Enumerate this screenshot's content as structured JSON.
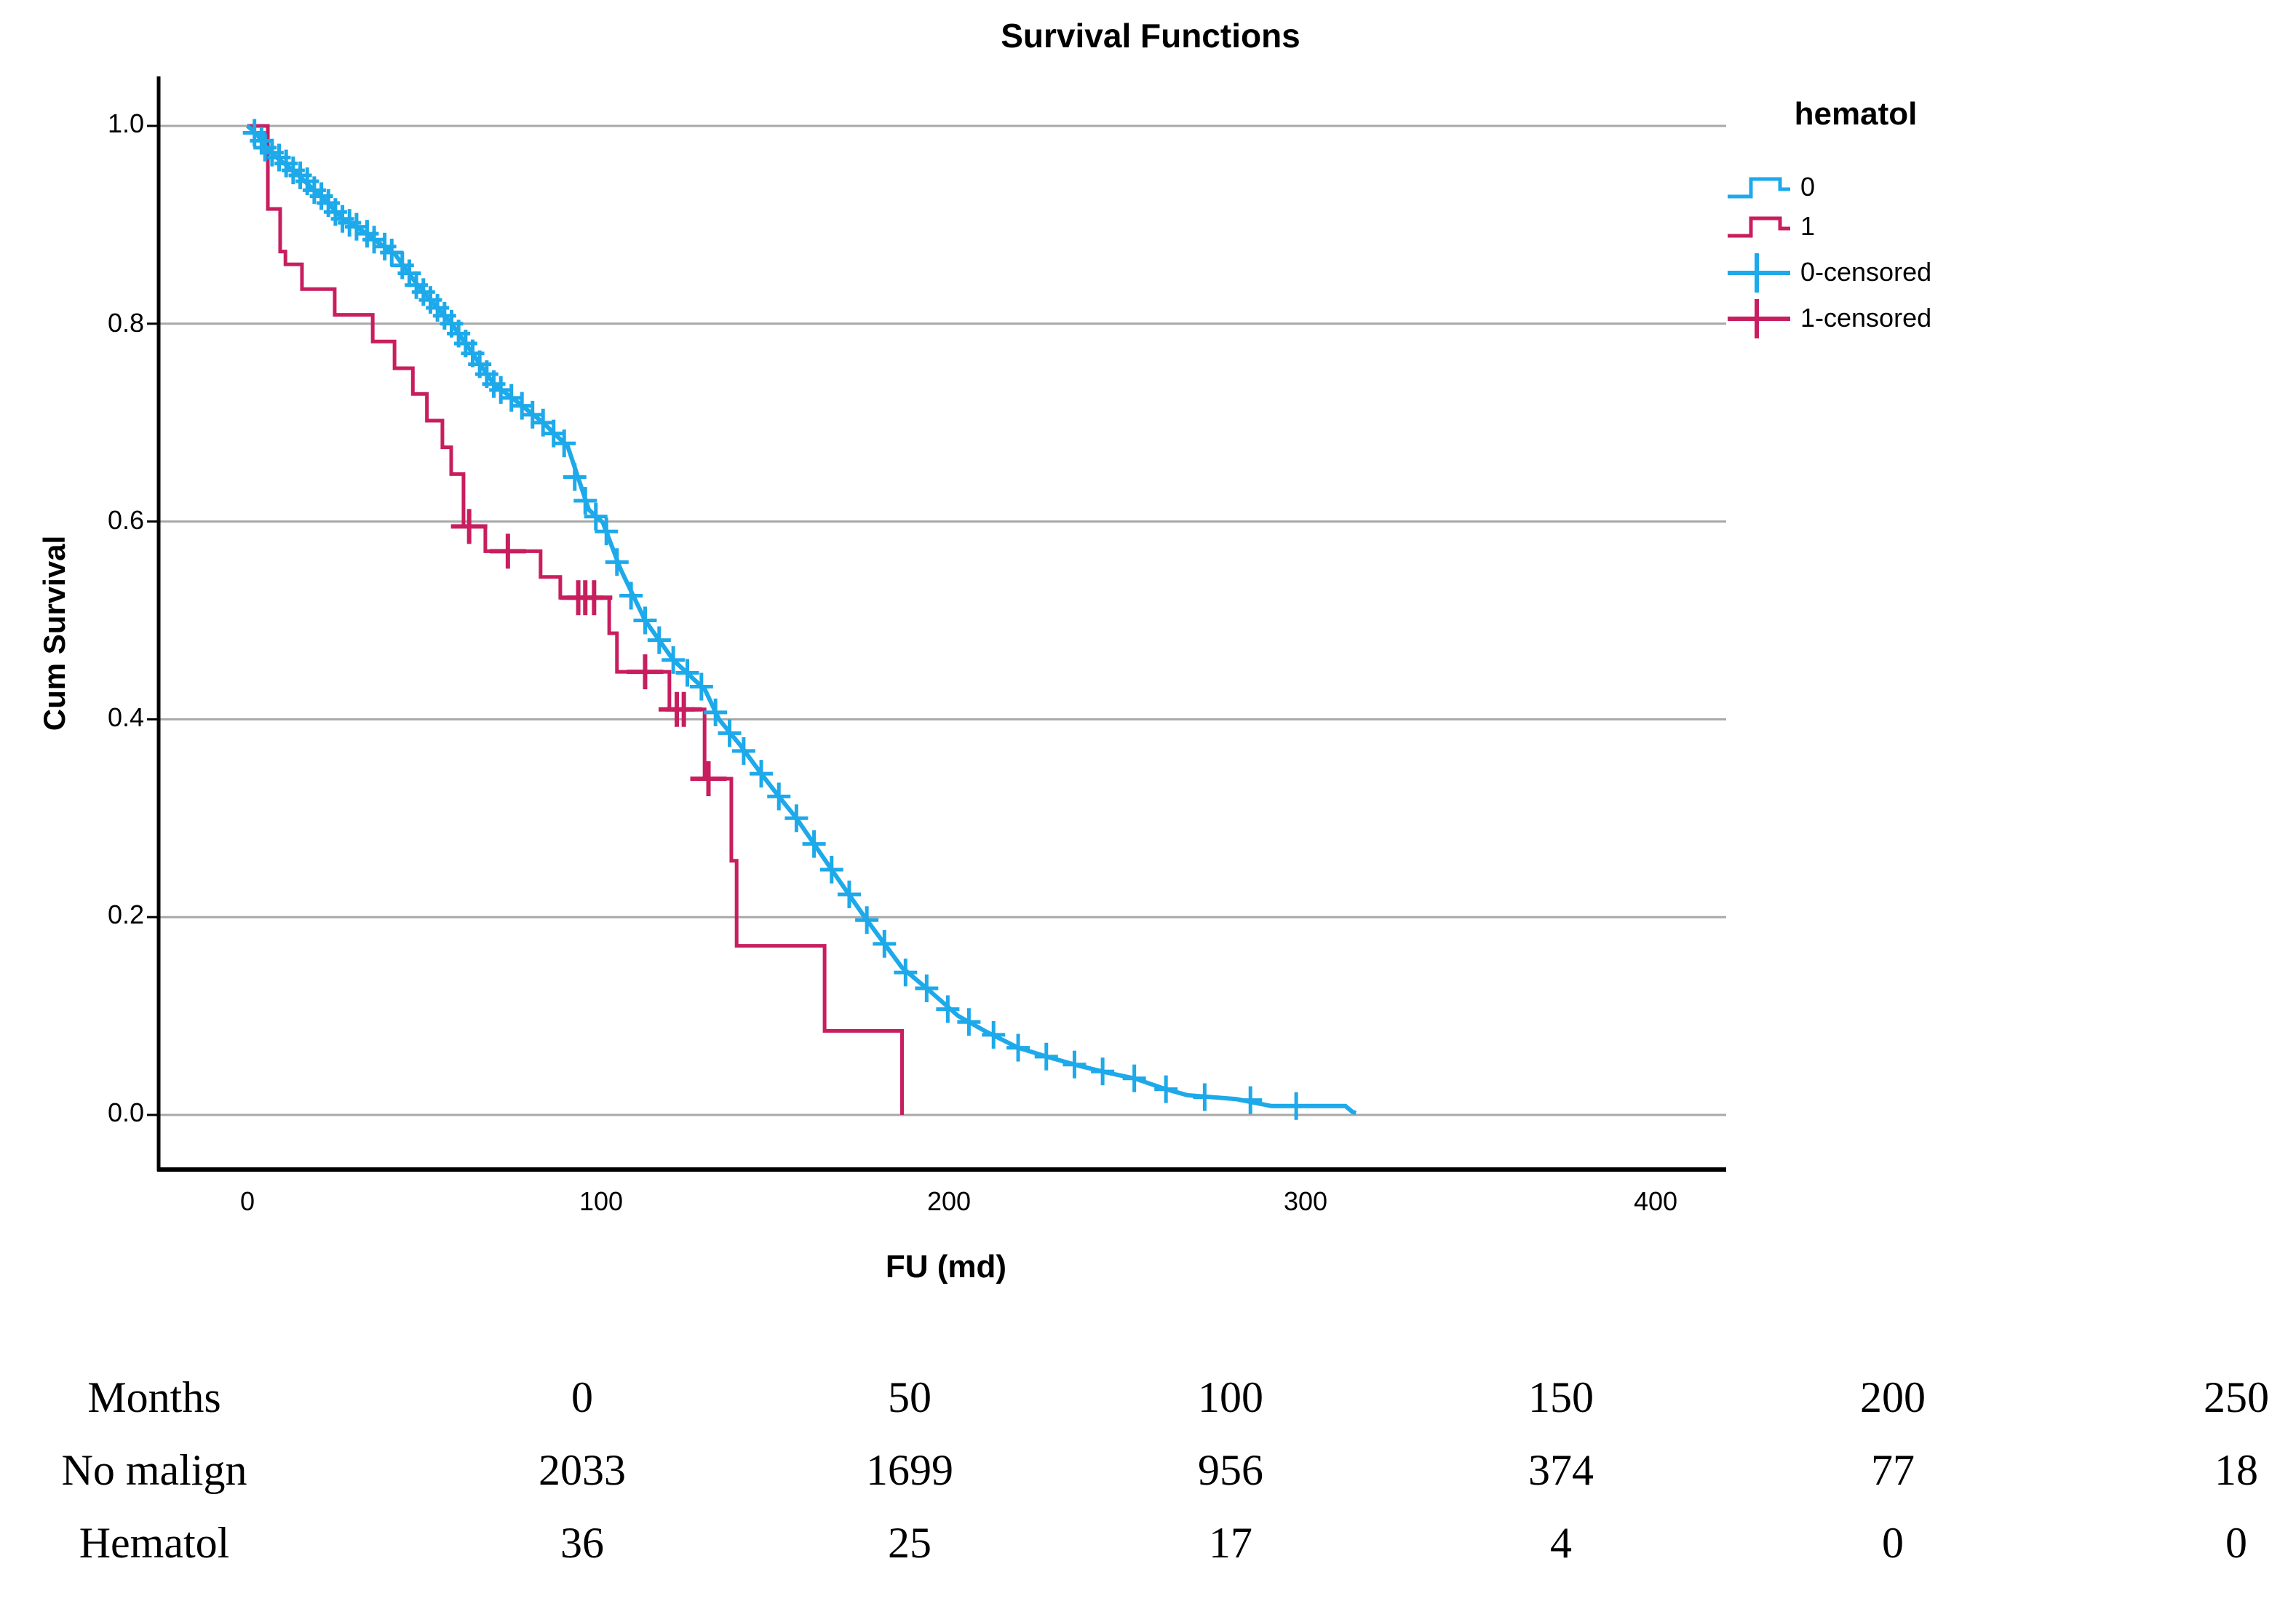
{
  "title": "Survival Functions",
  "axes": {
    "y_label": "Cum Survival",
    "x_label": "FU (md)",
    "y_ticks": [
      "1.0",
      "0.8",
      "0.6",
      "0.4",
      "0.2",
      "0.0"
    ],
    "x_ticks": [
      "0",
      "100",
      "200",
      "300",
      "400"
    ]
  },
  "legend": {
    "title": "hematol",
    "entries": [
      {
        "label": "0",
        "type": "step",
        "color": "#1da9ea"
      },
      {
        "label": "1",
        "type": "step",
        "color": "#c81e5f"
      },
      {
        "label": "0-censored",
        "type": "plus",
        "color": "#1da9ea"
      },
      {
        "label": "1-censored",
        "type": "plus",
        "color": "#c81e5f"
      }
    ]
  },
  "colors": {
    "blue": "#1da9ea",
    "red": "#c81e5f",
    "grid": "#a8a8a8",
    "axis": "#000000"
  },
  "chart_data": {
    "type": "line",
    "subtype": "kaplan-meier",
    "title": "Survival Functions",
    "xlabel": "FU (md)",
    "ylabel": "Cum Survival",
    "xlim": [
      0,
      400
    ],
    "ylim": [
      0.0,
      1.0
    ],
    "grid": "horizontal",
    "legend_position": "right",
    "series": [
      {
        "name": "0",
        "group": "No malign",
        "color": "#1da9ea",
        "render": "smooth",
        "points": [
          [
            0,
            1.0
          ],
          [
            1,
            0.997
          ],
          [
            3,
            0.99
          ],
          [
            6,
            0.975
          ],
          [
            9,
            0.966
          ],
          [
            13,
            0.955
          ],
          [
            19,
            0.935
          ],
          [
            23,
            0.922
          ],
          [
            27,
            0.906
          ],
          [
            33,
            0.893
          ],
          [
            38,
            0.88
          ],
          [
            42,
            0.87
          ],
          [
            45,
            0.855
          ],
          [
            49,
            0.836
          ],
          [
            54,
            0.816
          ],
          [
            58,
            0.8
          ],
          [
            63,
            0.775
          ],
          [
            70,
            0.739
          ],
          [
            77,
            0.72
          ],
          [
            84,
            0.7
          ],
          [
            91,
            0.676
          ],
          [
            97,
            0.612
          ],
          [
            101,
            0.599
          ],
          [
            106,
            0.552
          ],
          [
            113,
            0.5
          ],
          [
            121,
            0.46
          ],
          [
            130,
            0.43
          ],
          [
            134,
            0.4
          ],
          [
            140,
            0.374
          ],
          [
            146,
            0.345
          ],
          [
            151,
            0.322
          ],
          [
            156,
            0.3
          ],
          [
            166,
            0.248
          ],
          [
            175,
            0.202
          ],
          [
            186,
            0.149
          ],
          [
            194,
            0.125
          ],
          [
            202,
            0.1
          ],
          [
            210,
            0.084
          ],
          [
            219,
            0.068
          ],
          [
            228,
            0.058
          ],
          [
            236,
            0.05
          ],
          [
            244,
            0.043
          ],
          [
            252,
            0.037
          ],
          [
            261,
            0.026
          ],
          [
            267,
            0.02
          ],
          [
            281,
            0.016
          ],
          [
            291,
            0.009
          ],
          [
            312,
            0.009
          ],
          [
            314,
            0.003
          ],
          [
            315,
            0.002
          ]
        ],
        "censored": [
          [
            2,
            0.993
          ],
          [
            4,
            0.985
          ],
          [
            5,
            0.978
          ],
          [
            7,
            0.973
          ],
          [
            9,
            0.968
          ],
          [
            11,
            0.962
          ],
          [
            13,
            0.955
          ],
          [
            15,
            0.95
          ],
          [
            17,
            0.944
          ],
          [
            19,
            0.935
          ],
          [
            21,
            0.929
          ],
          [
            23,
            0.922
          ],
          [
            25,
            0.913
          ],
          [
            27,
            0.906
          ],
          [
            29,
            0.902
          ],
          [
            31,
            0.898
          ],
          [
            34,
            0.891
          ],
          [
            36,
            0.885
          ],
          [
            39,
            0.878
          ],
          [
            41,
            0.872
          ],
          [
            44,
            0.859
          ],
          [
            46,
            0.851
          ],
          [
            48,
            0.839
          ],
          [
            50,
            0.832
          ],
          [
            52,
            0.824
          ],
          [
            54,
            0.816
          ],
          [
            56,
            0.808
          ],
          [
            58,
            0.8
          ],
          [
            60,
            0.79
          ],
          [
            62,
            0.78
          ],
          [
            64,
            0.77
          ],
          [
            66,
            0.759
          ],
          [
            68,
            0.749
          ],
          [
            70,
            0.739
          ],
          [
            72,
            0.733
          ],
          [
            75,
            0.725
          ],
          [
            78,
            0.717
          ],
          [
            81,
            0.708
          ],
          [
            84,
            0.7
          ],
          [
            87,
            0.689
          ],
          [
            90,
            0.679
          ],
          [
            93,
            0.645
          ],
          [
            96,
            0.621
          ],
          [
            99,
            0.605
          ],
          [
            102,
            0.59
          ],
          [
            105,
            0.559
          ],
          [
            109,
            0.525
          ],
          [
            113,
            0.5
          ],
          [
            117,
            0.48
          ],
          [
            121,
            0.46
          ],
          [
            125,
            0.447
          ],
          [
            129,
            0.433
          ],
          [
            133,
            0.407
          ],
          [
            137,
            0.386
          ],
          [
            141,
            0.368
          ],
          [
            146,
            0.345
          ],
          [
            151,
            0.322
          ],
          [
            156,
            0.3
          ],
          [
            161,
            0.274
          ],
          [
            166,
            0.248
          ],
          [
            171,
            0.223
          ],
          [
            176,
            0.197
          ],
          [
            181,
            0.173
          ],
          [
            187,
            0.144
          ],
          [
            193,
            0.128
          ],
          [
            199,
            0.107
          ],
          [
            205,
            0.094
          ],
          [
            212,
            0.081
          ],
          [
            219,
            0.068
          ],
          [
            227,
            0.059
          ],
          [
            235,
            0.051
          ],
          [
            243,
            0.044
          ],
          [
            252,
            0.037
          ],
          [
            261,
            0.026
          ],
          [
            272,
            0.018
          ],
          [
            285,
            0.015
          ],
          [
            298,
            0.009
          ]
        ]
      },
      {
        "name": "1",
        "group": "Hematol",
        "color": "#c81e5f",
        "render": "step",
        "points": [
          [
            0,
            1.0
          ],
          [
            5.8,
            0.916
          ],
          [
            9.3,
            0.873
          ],
          [
            10.8,
            0.86
          ],
          [
            15.5,
            0.835
          ],
          [
            24.8,
            0.809
          ],
          [
            35.6,
            0.782
          ],
          [
            41.8,
            0.755
          ],
          [
            47,
            0.729
          ],
          [
            51,
            0.702
          ],
          [
            55.4,
            0.675
          ],
          [
            57.9,
            0.648
          ],
          [
            61.4,
            0.595
          ],
          [
            67.6,
            0.57
          ],
          [
            83.3,
            0.544
          ],
          [
            88.9,
            0.523
          ],
          [
            102.8,
            0.487
          ],
          [
            105,
            0.448
          ],
          [
            119.9,
            0.41
          ],
          [
            129.9,
            0.34
          ],
          [
            137.5,
            0.257
          ],
          [
            139,
            0.171
          ],
          [
            164,
            0.085
          ],
          [
            186,
            0.0
          ]
        ],
        "censored": [
          [
            63,
            0.595
          ],
          [
            74,
            0.57
          ],
          [
            94,
            0.523
          ],
          [
            96,
            0.523
          ],
          [
            98.5,
            0.523
          ],
          [
            113,
            0.448
          ],
          [
            122,
            0.41
          ],
          [
            124,
            0.41
          ],
          [
            131,
            0.34
          ]
        ]
      }
    ]
  },
  "risk_table": {
    "rows": [
      {
        "label": "Months",
        "values": [
          "0",
          "50",
          "100",
          "150",
          "200",
          "250"
        ]
      },
      {
        "label": "No malign",
        "values": [
          "2033",
          "1699",
          "956",
          "374",
          "77",
          "18"
        ]
      },
      {
        "label": "Hematol",
        "values": [
          "36",
          "25",
          "17",
          "4",
          "0",
          "0"
        ]
      }
    ]
  }
}
